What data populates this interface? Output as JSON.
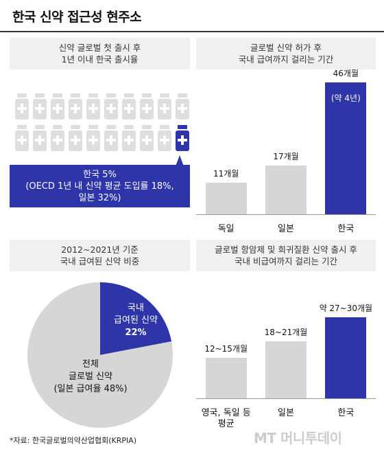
{
  "title": "한국 신약 접근성 현주소",
  "panels": {
    "launch": {
      "header_line1": "신약 글로벌 첫 출시 후",
      "header_line2": "1년 이내 한국 출시율",
      "label_line1": "한국 5%",
      "label_line2": "(OECD 1년 내 신약 평균 도입률 18%,",
      "label_line3": "일본 32%)"
    },
    "approval": {
      "header_line1": "글로벌 신약 허가 후",
      "header_line2": "국내 급여까지 걸리는 기간"
    },
    "share": {
      "header_line1": "2012~2021년 기준",
      "header_line2": "국내 급여된 신약 비중",
      "slice1_line1": "국내",
      "slice1_line2": "급여된 신약",
      "slice1_line3": "22%",
      "slice2_line1": "전체",
      "slice2_line2": "글로벌 신약",
      "slice2_line3": "(일본 급여율 48%)"
    },
    "rare": {
      "header_line1": "글로벌 항암제 및 희귀질환 신약 출시 후",
      "header_line2": "국내 비급여까지 걸리는 기간"
    }
  },
  "colors": {
    "accent": "#2e35a8",
    "grey_bar": "#d6d6d6",
    "bottle_grey": "#dedede",
    "pie_grey": "#d6d6d6"
  },
  "icons": {
    "bottle": "medicine-bottle-icon",
    "cross": "plus-cross-icon"
  },
  "chart_data": [
    {
      "type": "pictograph",
      "title": "신약 글로벌 첫 출시 후 1년 이내 한국 출시율",
      "total_icons": 20,
      "highlighted_icons": 1,
      "series": [
        {
          "name": "한국",
          "value": 5
        },
        {
          "name": "OECD 평균",
          "value": 18
        },
        {
          "name": "일본",
          "value": 32
        }
      ],
      "unit": "%"
    },
    {
      "type": "bar",
      "title": "글로벌 신약 허가 후 국내 급여까지 걸리는 기간",
      "categories": [
        "독일",
        "일본",
        "한국"
      ],
      "values": [
        11,
        17,
        46
      ],
      "value_labels": [
        "11개월",
        "17개월",
        "46개월"
      ],
      "extra_label": "(약 4년)",
      "highlight": "한국",
      "ylim": [
        0,
        46
      ]
    },
    {
      "type": "pie",
      "title": "2012~2021년 기준 국내 급여된 신약 비중",
      "slices": [
        {
          "label": "국내 급여된 신약",
          "value": 22
        },
        {
          "label": "전체 글로벌 신약",
          "value": 78
        }
      ],
      "annotation": "일본 급여율 48%"
    },
    {
      "type": "bar",
      "title": "글로벌 항암제 및 희귀질환 신약 출시 후 국내 비급여까지 걸리는 기간",
      "categories": [
        "영국, 독일 등 평균",
        "일본",
        "한국"
      ],
      "category_lines": [
        [
          "영국, 독일 등",
          "평균"
        ],
        [
          "일본"
        ],
        [
          "한국"
        ]
      ],
      "ranges": [
        [
          12,
          15
        ],
        [
          18,
          21
        ],
        [
          27,
          30
        ]
      ],
      "value_labels": [
        "12~15개월",
        "18~21개월",
        "약 27~30개월"
      ],
      "highlight": "한국",
      "ylim": [
        0,
        30
      ]
    }
  ],
  "footer": {
    "source": "*자료: 한국글로벌의약산업협회(KRPIA)",
    "logo": "MT 머니투데이"
  }
}
